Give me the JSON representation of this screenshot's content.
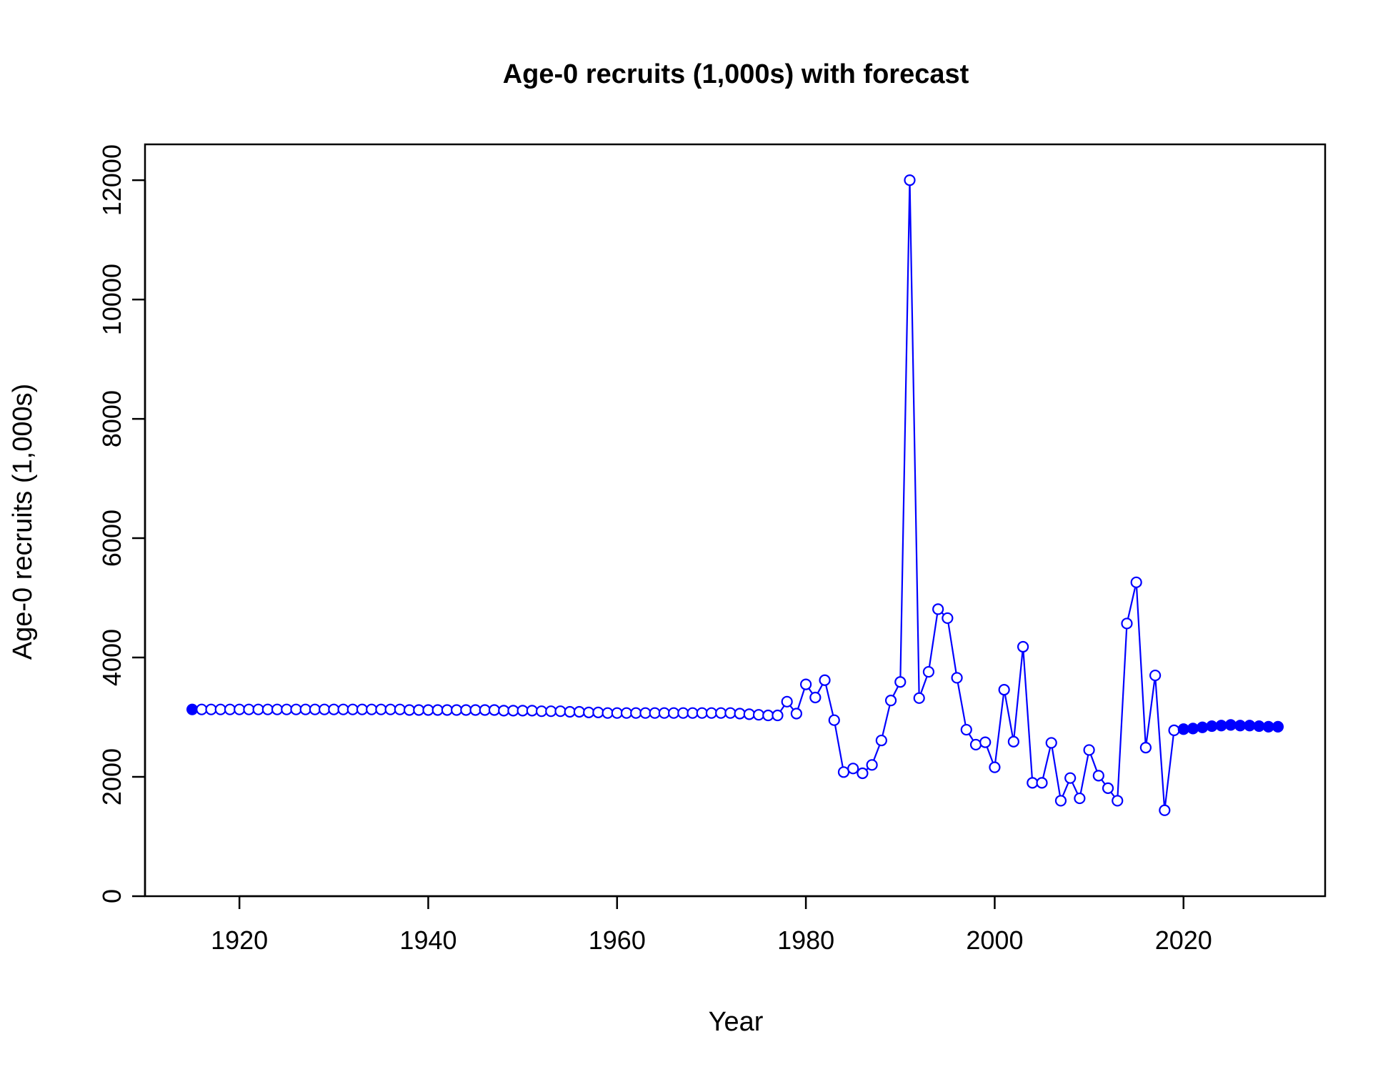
{
  "chart_data": {
    "type": "line",
    "title": "Age-0 recruits (1,000s) with forecast",
    "xlabel": "Year",
    "ylabel": "Age-0 recruits (1,000s)",
    "xlim": [
      1910,
      2035
    ],
    "ylim": [
      0,
      12600
    ],
    "x_ticks": [
      1920,
      1940,
      1960,
      1980,
      2000,
      2020
    ],
    "y_ticks": [
      0,
      2000,
      4000,
      6000,
      8000,
      10000,
      12000
    ],
    "grid": false,
    "colors": {
      "series": "#0000ff",
      "axis": "#000000",
      "background": "#ffffff"
    },
    "series": [
      {
        "x": [
          1915,
          1916,
          1917,
          1918,
          1919,
          1920,
          1921,
          1922,
          1923,
          1924,
          1925,
          1926,
          1927,
          1928,
          1929,
          1930,
          1931,
          1932,
          1933,
          1934,
          1935,
          1936,
          1937,
          1938,
          1939,
          1940,
          1941,
          1942,
          1943,
          1944,
          1945,
          1946,
          1947,
          1948,
          1949,
          1950,
          1951,
          1952,
          1953,
          1954,
          1955,
          1956,
          1957,
          1958,
          1959,
          1960,
          1961,
          1962,
          1963,
          1964,
          1965,
          1966,
          1967,
          1968,
          1969,
          1970,
          1971,
          1972,
          1973,
          1974,
          1975,
          1976,
          1977,
          1978,
          1979,
          1980,
          1981,
          1982,
          1983,
          1984,
          1985,
          1986,
          1987,
          1988,
          1989,
          1990,
          1991,
          1992,
          1993,
          1994,
          1995,
          1996,
          1997,
          1998,
          1999,
          2000,
          2001,
          2002,
          2003,
          2004,
          2005,
          2006,
          2007,
          2008,
          2009,
          2010,
          2011,
          2012,
          2013,
          2014,
          2015,
          2016,
          2017,
          2018,
          2019,
          2020,
          2021,
          2022,
          2023,
          2024,
          2025,
          2026,
          2027,
          2028,
          2029,
          2030
        ],
        "y": [
          3130,
          3130,
          3130,
          3130,
          3130,
          3130,
          3130,
          3130,
          3130,
          3130,
          3130,
          3130,
          3130,
          3130,
          3130,
          3130,
          3130,
          3130,
          3130,
          3130,
          3130,
          3130,
          3130,
          3120,
          3120,
          3120,
          3120,
          3120,
          3120,
          3120,
          3120,
          3120,
          3120,
          3110,
          3110,
          3110,
          3110,
          3100,
          3100,
          3100,
          3090,
          3090,
          3080,
          3080,
          3070,
          3070,
          3070,
          3070,
          3070,
          3070,
          3070,
          3070,
          3070,
          3070,
          3070,
          3070,
          3070,
          3070,
          3060,
          3050,
          3040,
          3030,
          3030,
          3260,
          3060,
          3550,
          3330,
          3620,
          2950,
          2080,
          2140,
          2060,
          2200,
          2610,
          3280,
          3590,
          12000,
          3320,
          3760,
          4810,
          4660,
          3660,
          2790,
          2540,
          2580,
          2160,
          3460,
          2590,
          4180,
          1900,
          1900,
          2570,
          1600,
          1980,
          1640,
          2450,
          2020,
          1810,
          1600,
          4570,
          5260,
          2490,
          3700,
          1440,
          2780,
          2800,
          2810,
          2830,
          2850,
          2860,
          2870,
          2860,
          2860,
          2850,
          2840,
          2840
        ],
        "filled_points": [
          1915,
          2020,
          2021,
          2022,
          2023,
          2024,
          2025,
          2026,
          2027,
          2028,
          2029,
          2030
        ]
      }
    ]
  }
}
